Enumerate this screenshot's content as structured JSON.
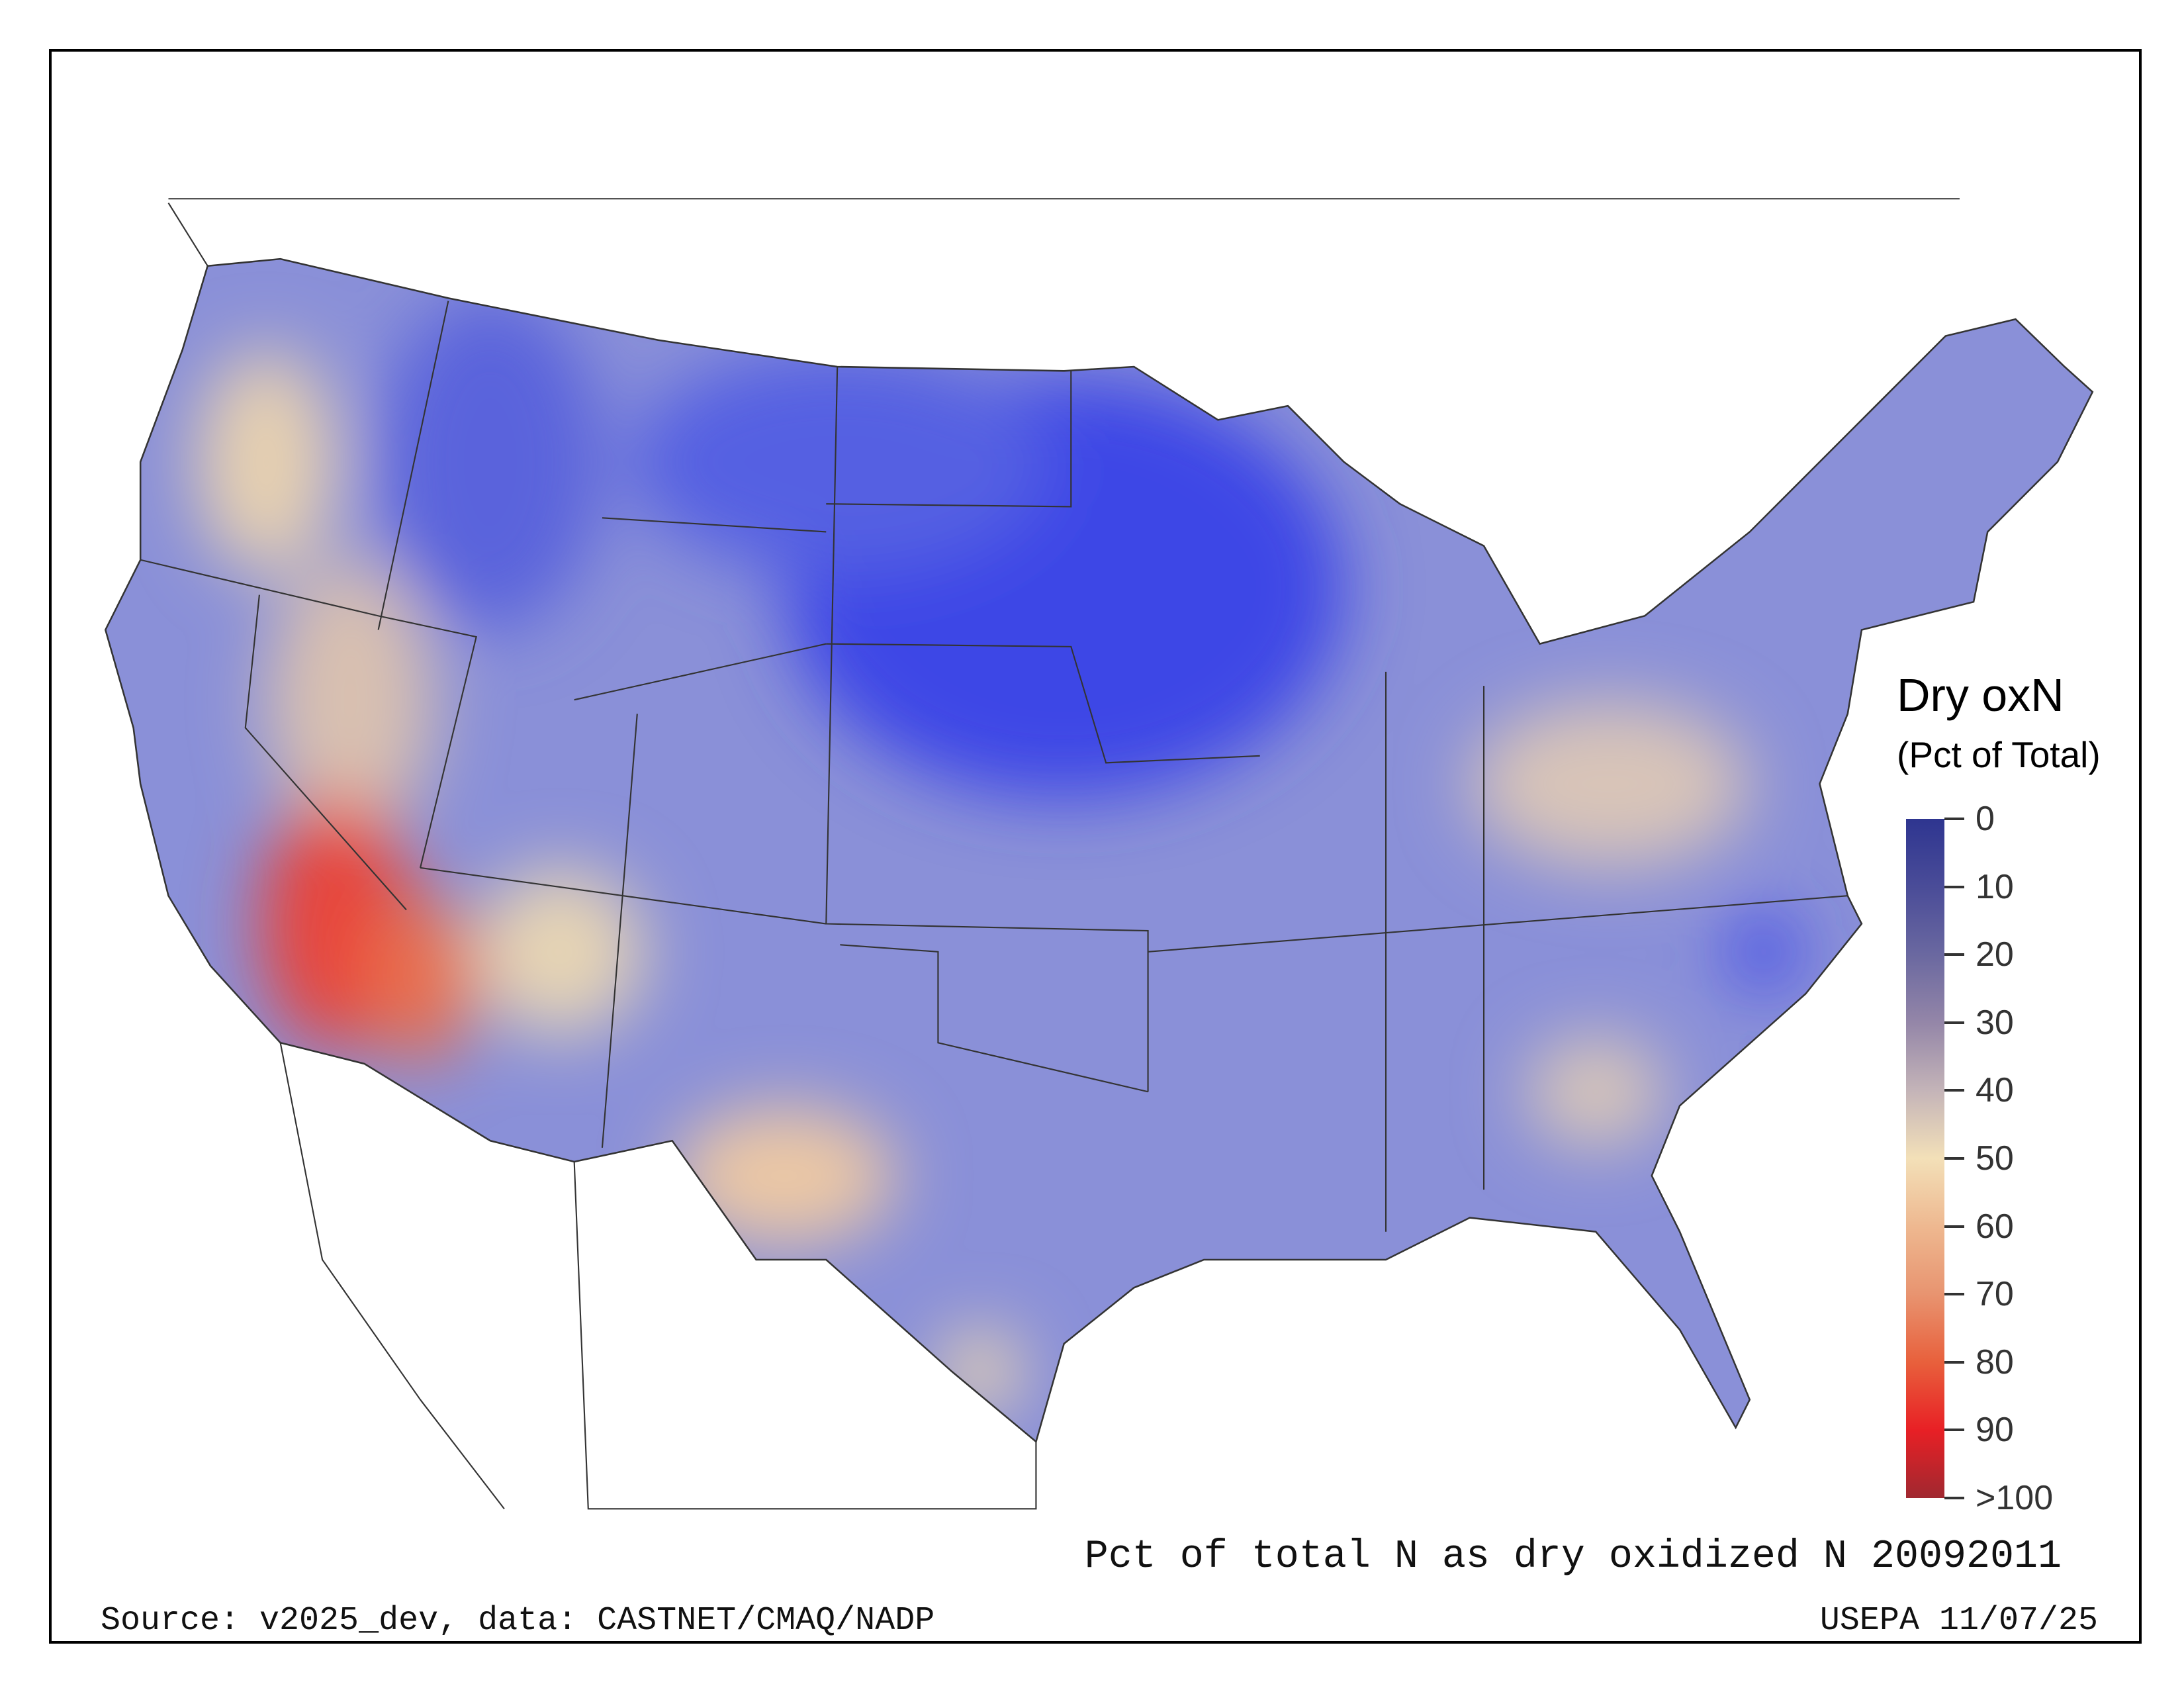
{
  "legend": {
    "title": "Dry oxN",
    "subtitle": "(Pct of Total)",
    "ticks": [
      "0",
      "10",
      "20",
      "30",
      "40",
      "50",
      "60",
      "70",
      "80",
      "90",
      ">100"
    ],
    "colors": [
      "#2e3590",
      "#4a4c98",
      "#6a68a0",
      "#9486a8",
      "#c4b4b8",
      "#f3e0b8",
      "#eeb890",
      "#e89470",
      "#e8603c",
      "#e82025",
      "#a02830"
    ]
  },
  "title": "Pct of total N as dry oxidized N 20092011",
  "source": "Source: v2025_dev, data: CASTNET/CMAQ/NADP",
  "credit": "USEPA 11/07/25"
}
